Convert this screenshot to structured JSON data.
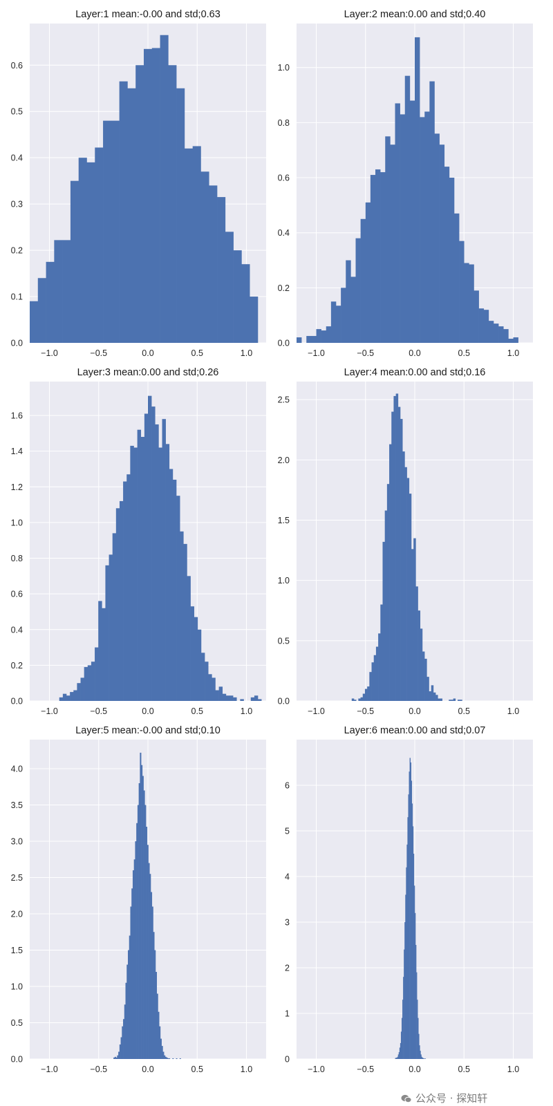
{
  "watermark": {
    "text": "公众号 · 探知轩"
  },
  "style": {
    "bar_color": "#4c72b0",
    "axes_bg": "#eaeaf2",
    "grid_color": "#ffffff"
  },
  "chart_data": [
    {
      "type": "bar",
      "title": "Layer:1 mean:-0.00 and std;0.63",
      "xlim": [
        -1.2,
        1.2
      ],
      "ylim": [
        0,
        0.69
      ],
      "xticks": [
        "−1.0",
        "−0.5",
        "0.0",
        "0.5",
        "1.0"
      ],
      "xtick_values": [
        -1.0,
        -0.5,
        0.0,
        0.5,
        1.0
      ],
      "yticks": [
        "0.0",
        "0.1",
        "0.2",
        "0.3",
        "0.4",
        "0.5",
        "0.6"
      ],
      "ytick_values": [
        0,
        0.1,
        0.2,
        0.3,
        0.4,
        0.5,
        0.6
      ],
      "grid": true,
      "bin_start": -1.2,
      "bin_width": 0.0827,
      "values": [
        0.09,
        0.14,
        0.175,
        0.222,
        0.222,
        0.35,
        0.4,
        0.39,
        0.422,
        0.48,
        0.48,
        0.565,
        0.55,
        0.6,
        0.635,
        0.637,
        0.665,
        0.6,
        0.55,
        0.42,
        0.425,
        0.37,
        0.34,
        0.315,
        0.24,
        0.2,
        0.17,
        0.1
      ]
    },
    {
      "type": "bar",
      "title": "Layer:2 mean:0.00 and std;0.40",
      "xlim": [
        -1.2,
        1.2
      ],
      "ylim": [
        0,
        1.16
      ],
      "xticks": [
        "−1.0",
        "−0.5",
        "0.0",
        "0.5",
        "1.0"
      ],
      "xtick_values": [
        -1.0,
        -0.5,
        0.0,
        0.5,
        1.0
      ],
      "yticks": [
        "0.0",
        "0.2",
        "0.4",
        "0.6",
        "0.8",
        "1.0"
      ],
      "ytick_values": [
        0,
        0.2,
        0.4,
        0.6,
        0.8,
        1.0
      ],
      "grid": true,
      "bin_start": -1.2,
      "bin_width": 0.05,
      "values": [
        0.02,
        0.0,
        0.025,
        0.025,
        0.05,
        0.045,
        0.06,
        0.15,
        0.135,
        0.2,
        0.3,
        0.24,
        0.38,
        0.45,
        0.51,
        0.61,
        0.63,
        0.62,
        0.75,
        0.72,
        0.87,
        0.83,
        0.97,
        0.88,
        1.11,
        0.82,
        0.84,
        0.95,
        0.76,
        0.72,
        0.64,
        0.6,
        0.47,
        0.37,
        0.29,
        0.285,
        0.19,
        0.125,
        0.12,
        0.08,
        0.07,
        0.06,
        0.05,
        0.015,
        0.02,
        0.0,
        0.0,
        0.0
      ]
    },
    {
      "type": "bar",
      "title": "Layer:3 mean:0.00 and std;0.26",
      "xlim": [
        -1.2,
        1.2
      ],
      "ylim": [
        0,
        1.79
      ],
      "xticks": [
        "−1.0",
        "−0.5",
        "0.0",
        "0.5",
        "1.0"
      ],
      "xtick_values": [
        -1.0,
        -0.5,
        0.0,
        0.5,
        1.0
      ],
      "yticks": [
        "0.0",
        "0.2",
        "0.4",
        "0.6",
        "0.8",
        "1.0",
        "1.2",
        "1.4",
        "1.6"
      ],
      "ytick_values": [
        0,
        0.2,
        0.4,
        0.6,
        0.8,
        1.0,
        1.2,
        1.4,
        1.6
      ],
      "grid": true,
      "bin_start": -0.9,
      "bin_width": 0.036,
      "values": [
        0.02,
        0.04,
        0.03,
        0.05,
        0.06,
        0.1,
        0.13,
        0.19,
        0.2,
        0.22,
        0.3,
        0.56,
        0.52,
        0.76,
        0.82,
        0.94,
        1.08,
        1.12,
        1.23,
        1.27,
        1.43,
        1.42,
        1.52,
        1.48,
        1.61,
        1.71,
        1.65,
        1.55,
        1.42,
        1.58,
        1.44,
        1.3,
        1.24,
        1.15,
        0.95,
        0.88,
        0.7,
        0.53,
        0.47,
        0.4,
        0.27,
        0.22,
        0.15,
        0.13,
        0.06,
        0.08,
        0.04,
        0.03,
        0.03,
        0.02,
        0.0,
        0.01,
        0.0,
        0.0,
        0.02,
        0.03,
        0.01
      ]
    },
    {
      "type": "bar",
      "title": "Layer:4 mean:0.00 and std;0.16",
      "xlim": [
        -1.2,
        1.2
      ],
      "ylim": [
        0,
        2.65
      ],
      "xticks": [
        "−1.0",
        "−0.5",
        "0.0",
        "0.5",
        "1.0"
      ],
      "xtick_values": [
        -1.0,
        -0.5,
        0.0,
        0.5,
        1.0
      ],
      "yticks": [
        "0.0",
        "0.5",
        "1.0",
        "1.5",
        "2.0",
        "2.5"
      ],
      "ytick_values": [
        0,
        0.5,
        1.0,
        1.5,
        2.0,
        2.5
      ],
      "grid": true,
      "bin_start": -0.64,
      "bin_width": 0.0224,
      "values": [
        0.02,
        0.01,
        0.0,
        0.02,
        0.03,
        0.06,
        0.1,
        0.12,
        0.24,
        0.32,
        0.38,
        0.45,
        0.56,
        0.8,
        1.32,
        1.58,
        1.8,
        2.13,
        2.4,
        2.53,
        2.55,
        2.44,
        2.34,
        2.07,
        1.94,
        1.85,
        1.72,
        1.26,
        1.35,
        0.95,
        0.75,
        0.6,
        0.41,
        0.35,
        0.2,
        0.08,
        0.13,
        0.07,
        0.05,
        0.02,
        0.02,
        0.0,
        0.0,
        0.0,
        0.01,
        0.01,
        0.02,
        0.0,
        0.01,
        0.01
      ]
    },
    {
      "type": "bar",
      "title": "Layer:5 mean:-0.00 and std;0.10",
      "xlim": [
        -1.2,
        1.2
      ],
      "ylim": [
        0,
        4.4
      ],
      "xticks": [
        "−1.0",
        "−0.5",
        "0.0",
        "0.5",
        "1.0"
      ],
      "xtick_values": [
        -1.0,
        -0.5,
        0.0,
        0.5,
        1.0
      ],
      "yticks": [
        "0.0",
        "0.5",
        "1.0",
        "1.5",
        "2.0",
        "2.5",
        "3.0",
        "3.5",
        "4.0"
      ],
      "ytick_values": [
        0,
        0.5,
        1.0,
        1.5,
        2.0,
        2.5,
        3.0,
        3.5,
        4.0
      ],
      "grid": true,
      "bin_start": -0.35,
      "bin_width": 0.0122,
      "values": [
        0.02,
        0.03,
        0.02,
        0.05,
        0.1,
        0.2,
        0.3,
        0.45,
        0.55,
        0.75,
        1.05,
        1.3,
        1.5,
        1.7,
        2.1,
        2.35,
        2.6,
        2.75,
        3.0,
        3.25,
        3.5,
        3.8,
        4.22,
        4.05,
        3.9,
        3.7,
        3.5,
        3.2,
        2.95,
        2.7,
        2.55,
        2.3,
        2.1,
        1.75,
        1.5,
        1.2,
        0.9,
        0.65,
        0.45,
        0.28,
        0.18,
        0.1,
        0.05,
        0.03,
        0.02,
        0.01,
        0.01,
        0.0,
        0.0,
        0.01,
        0.0,
        0.0,
        0.01,
        0.0,
        0.0,
        0.01
      ]
    },
    {
      "type": "bar",
      "title": "Layer:6 mean:0.00 and std;0.07",
      "xlim": [
        -1.2,
        1.2
      ],
      "ylim": [
        0,
        7.0
      ],
      "xticks": [
        "−1.0",
        "−0.5",
        "0.0",
        "0.5",
        "1.0"
      ],
      "xtick_values": [
        -1.0,
        -0.5,
        0.0,
        0.5,
        1.0
      ],
      "yticks": [
        "0",
        "1",
        "2",
        "3",
        "4",
        "5",
        "6"
      ],
      "ytick_values": [
        0,
        1,
        2,
        3,
        4,
        5,
        6
      ],
      "grid": true,
      "bin_start": -0.2,
      "bin_width": 0.0074,
      "values": [
        0.02,
        0.03,
        0.03,
        0.05,
        0.1,
        0.15,
        0.25,
        0.35,
        0.6,
        0.9,
        1.3,
        1.8,
        2.4,
        3.0,
        3.6,
        4.2,
        4.7,
        5.3,
        5.8,
        6.3,
        6.6,
        6.5,
        6.1,
        5.6,
        5.1,
        4.5,
        3.8,
        3.2,
        2.5,
        1.9,
        1.3,
        0.9,
        0.55,
        0.3,
        0.18,
        0.1,
        0.05,
        0.03,
        0.02,
        0.01,
        0.01,
        0.01
      ]
    }
  ]
}
